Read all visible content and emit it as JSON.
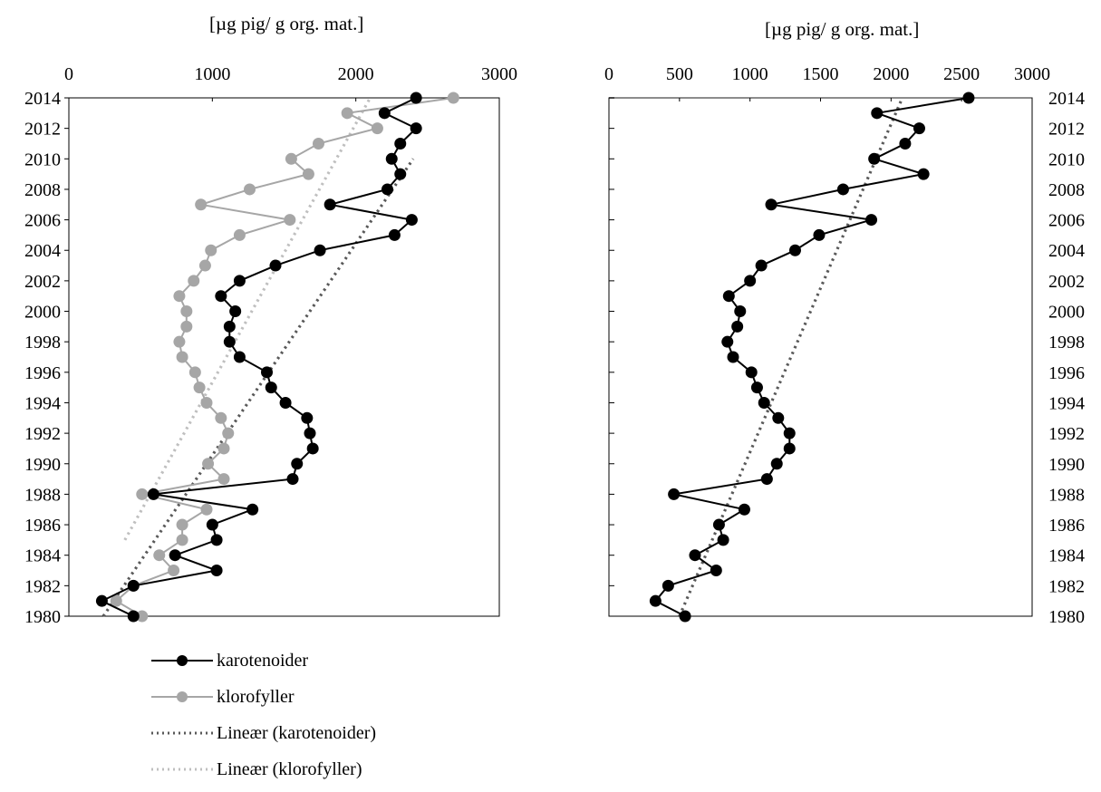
{
  "chart_data": [
    {
      "type": "line",
      "title": "[µg pig/ g org. mat.]",
      "xlim": [
        0,
        3000
      ],
      "xticks": [
        "0",
        "1000",
        "2000",
        "3000"
      ],
      "ylim": [
        1980,
        2014
      ],
      "yticks": [
        "1980",
        "1982",
        "1984",
        "1986",
        "1988",
        "1990",
        "1992",
        "1994",
        "1996",
        "1998",
        "2000",
        "2002",
        "2004",
        "2006",
        "2008",
        "2010",
        "2012",
        "2014"
      ],
      "y_axis_side": "left",
      "series": [
        {
          "name": "karotenoider",
          "color": "#000000",
          "style": "solid-markers",
          "points": [
            [
              2420,
              2014
            ],
            [
              2200,
              2013
            ],
            [
              2420,
              2012
            ],
            [
              2310,
              2011
            ],
            [
              2250,
              2010
            ],
            [
              2310,
              2009
            ],
            [
              2220,
              2008
            ],
            [
              1820,
              2007
            ],
            [
              2390,
              2006
            ],
            [
              2270,
              2005
            ],
            [
              1750,
              2004
            ],
            [
              1440,
              2003
            ],
            [
              1190,
              2002
            ],
            [
              1060,
              2001
            ],
            [
              1160,
              2000
            ],
            [
              1120,
              1999
            ],
            [
              1120,
              1998
            ],
            [
              1190,
              1997
            ],
            [
              1380,
              1996
            ],
            [
              1410,
              1995
            ],
            [
              1510,
              1994
            ],
            [
              1660,
              1993
            ],
            [
              1680,
              1992
            ],
            [
              1700,
              1991
            ],
            [
              1590,
              1990
            ],
            [
              1560,
              1989
            ],
            [
              590,
              1988
            ],
            [
              1280,
              1987
            ],
            [
              1000,
              1986
            ],
            [
              1030,
              1985
            ],
            [
              740,
              1984
            ],
            [
              1030,
              1983
            ],
            [
              450,
              1982
            ],
            [
              230,
              1981
            ],
            [
              450,
              1980
            ]
          ]
        },
        {
          "name": "klorofyller",
          "color": "#a6a6a6",
          "style": "solid-markers",
          "points": [
            [
              2680,
              2014
            ],
            [
              1940,
              2013
            ],
            [
              2150,
              2012
            ],
            [
              1740,
              2011
            ],
            [
              1550,
              2010
            ],
            [
              1670,
              2009
            ],
            [
              1260,
              2008
            ],
            [
              920,
              2007
            ],
            [
              1540,
              2006
            ],
            [
              1190,
              2005
            ],
            [
              990,
              2004
            ],
            [
              950,
              2003
            ],
            [
              870,
              2002
            ],
            [
              770,
              2001
            ],
            [
              820,
              2000
            ],
            [
              820,
              1999
            ],
            [
              770,
              1998
            ],
            [
              790,
              1997
            ],
            [
              880,
              1996
            ],
            [
              910,
              1995
            ],
            [
              960,
              1994
            ],
            [
              1060,
              1993
            ],
            [
              1110,
              1992
            ],
            [
              1080,
              1991
            ],
            [
              970,
              1990
            ],
            [
              1080,
              1989
            ],
            [
              510,
              1988
            ],
            [
              960,
              1987
            ],
            [
              790,
              1986
            ],
            [
              790,
              1985
            ],
            [
              630,
              1984
            ],
            [
              730,
              1983
            ],
            [
              450,
              1982
            ],
            [
              330,
              1981
            ],
            [
              510,
              1980
            ]
          ]
        },
        {
          "name": "Lineær (karotenoider)",
          "color": "#595959",
          "style": "dotted",
          "points": [
            [
              240,
              1980
            ],
            [
              2400,
              2010
            ]
          ]
        },
        {
          "name": "Lineær (klorofyller)",
          "color": "#bfbfbf",
          "style": "dotted",
          "points": [
            [
              390,
              1985
            ],
            [
              2100,
              2014
            ]
          ]
        }
      ]
    },
    {
      "type": "line",
      "title": "[µg pig/ g org. mat.]",
      "xlim": [
        0,
        3000
      ],
      "xticks": [
        "0",
        "500",
        "1000",
        "1500",
        "2000",
        "2500",
        "3000"
      ],
      "ylim": [
        1980,
        2014
      ],
      "yticks": [
        "1980",
        "1982",
        "1984",
        "1986",
        "1988",
        "1990",
        "1992",
        "1994",
        "1996",
        "1998",
        "2000",
        "2002",
        "2004",
        "2006",
        "2008",
        "2010",
        "2012",
        "2014"
      ],
      "y_axis_side": "right",
      "series": [
        {
          "color": "#000000",
          "style": "solid-markers",
          "points": [
            [
              2550,
              2014
            ],
            [
              1900,
              2013
            ],
            [
              2200,
              2012
            ],
            [
              2100,
              2011
            ],
            [
              1880,
              2010
            ],
            [
              2230,
              2009
            ],
            [
              1660,
              2008
            ],
            [
              1150,
              2007
            ],
            [
              1860,
              2006
            ],
            [
              1490,
              2005
            ],
            [
              1320,
              2004
            ],
            [
              1080,
              2003
            ],
            [
              1000,
              2002
            ],
            [
              850,
              2001
            ],
            [
              930,
              2000
            ],
            [
              910,
              1999
            ],
            [
              840,
              1998
            ],
            [
              880,
              1997
            ],
            [
              1010,
              1996
            ],
            [
              1050,
              1995
            ],
            [
              1100,
              1994
            ],
            [
              1200,
              1993
            ],
            [
              1280,
              1992
            ],
            [
              1280,
              1991
            ],
            [
              1190,
              1990
            ],
            [
              1120,
              1989
            ],
            [
              460,
              1988
            ],
            [
              960,
              1987
            ],
            [
              780,
              1986
            ],
            [
              810,
              1985
            ],
            [
              610,
              1984
            ],
            [
              760,
              1983
            ],
            [
              420,
              1982
            ],
            [
              330,
              1981
            ],
            [
              540,
              1980
            ]
          ]
        },
        {
          "color": "#595959",
          "style": "dotted",
          "points": [
            [
              500,
              1980
            ],
            [
              2080,
              2014
            ]
          ]
        }
      ]
    }
  ],
  "legend": {
    "items": [
      {
        "label": "karotenoider",
        "color": "#000000",
        "style": "solid-markers"
      },
      {
        "label": "klorofyller",
        "color": "#a6a6a6",
        "style": "solid-markers"
      },
      {
        "label": "Lineær (karotenoider)",
        "color": "#595959",
        "style": "dotted"
      },
      {
        "label": "Lineær (klorofyller)",
        "color": "#bfbfbf",
        "style": "dotted"
      }
    ]
  }
}
